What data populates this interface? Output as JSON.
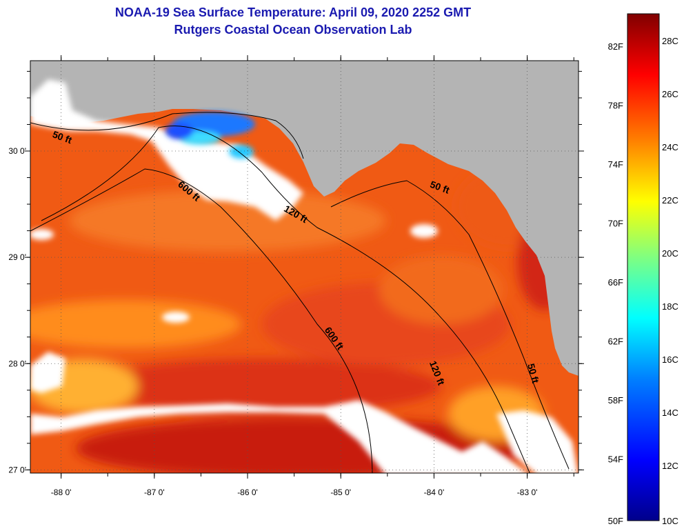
{
  "title_line1": "NOAA-19 Sea Surface Temperature:  April 09, 2020 2252 GMT",
  "title_line2": "Rutgers Coastal Ocean Observation Lab",
  "map": {
    "lon_range": [
      -88.33,
      -82.45
    ],
    "lat_range": [
      26.97,
      30.85
    ],
    "lon_ticks": [
      {
        "value": -88,
        "label": "-88 0'"
      },
      {
        "value": -87,
        "label": "-87 0'"
      },
      {
        "value": -86,
        "label": "-86 0'"
      },
      {
        "value": -85,
        "label": "-85 0'"
      },
      {
        "value": -84,
        "label": "-84 0'"
      },
      {
        "value": -83,
        "label": "-83 0'"
      }
    ],
    "lat_ticks": [
      {
        "value": 27,
        "label": "27 0'"
      },
      {
        "value": 28,
        "label": "28 0'"
      },
      {
        "value": 29,
        "label": "29 0'"
      },
      {
        "value": 30,
        "label": "30 0'"
      }
    ],
    "land_color": "#b4b4b4",
    "cloud_color": "#ffffff",
    "contour_labels": [
      {
        "text": "50 ft",
        "lon": -88.0,
        "lat": 30.1,
        "rotate": 20
      },
      {
        "text": "600 ft",
        "lon": -86.65,
        "lat": 29.6,
        "rotate": 40
      },
      {
        "text": "120 ft",
        "lon": -85.5,
        "lat": 29.38,
        "rotate": 30
      },
      {
        "text": "50 ft",
        "lon": -83.95,
        "lat": 29.63,
        "rotate": 20
      },
      {
        "text": "600 ft",
        "lon": -85.1,
        "lat": 28.22,
        "rotate": 55
      },
      {
        "text": "120 ft",
        "lon": -84.0,
        "lat": 27.9,
        "rotate": 68
      },
      {
        "text": "50 ft",
        "lon": -82.97,
        "lat": 27.9,
        "rotate": 75
      }
    ]
  },
  "colorbar": {
    "colors": [
      "#00008b",
      "#0000ff",
      "#0080ff",
      "#00ffff",
      "#80ff80",
      "#ffff00",
      "#ff8000",
      "#ff0000",
      "#800000"
    ],
    "fahrenheit_labels": [
      "82F",
      "78F",
      "74F",
      "70F",
      "66F",
      "62F",
      "58F",
      "54F",
      "50F"
    ],
    "celsius_labels": [
      "28C",
      "26C",
      "24C",
      "22C",
      "20C",
      "18C",
      "16C",
      "14C",
      "12C",
      "10C"
    ]
  }
}
